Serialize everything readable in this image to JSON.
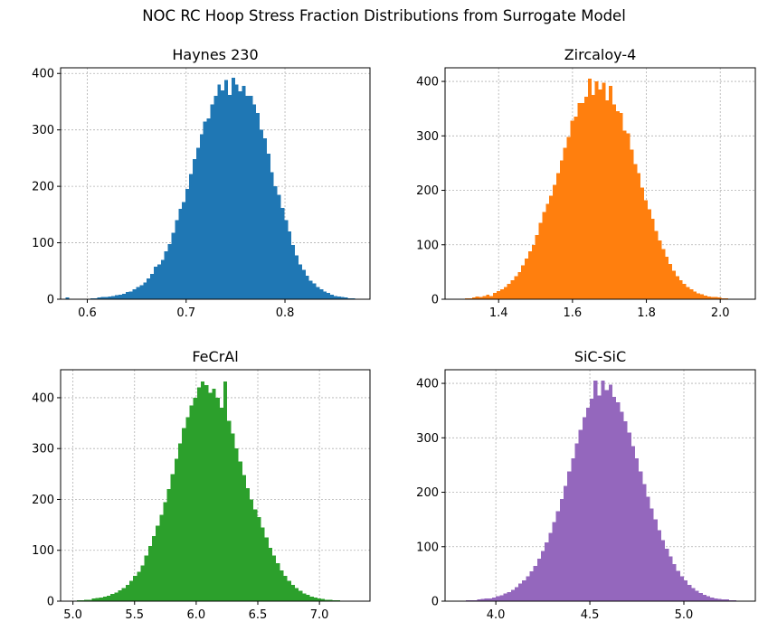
{
  "figure": {
    "title": "NOC RC Hoop Stress Fraction Distributions from Surrogate Model"
  },
  "chart_data": [
    {
      "type": "bar",
      "title": "Haynes 230",
      "color": "#1f77b4",
      "xlim": [
        0.573,
        0.886
      ],
      "ylim": [
        0,
        410
      ],
      "xticks": [
        "0.6",
        "0.7",
        "0.8"
      ],
      "xtick_values": [
        0.6,
        0.7,
        0.8
      ],
      "yticks": [
        "0",
        "100",
        "200",
        "300",
        "400"
      ],
      "ytick_values": [
        0,
        100,
        200,
        300,
        400
      ],
      "grid": true,
      "bins": {
        "start": 0.578,
        "end": 0.878
      },
      "values": [
        3,
        0,
        0,
        0,
        0,
        1,
        1,
        2,
        2,
        3,
        4,
        4,
        5,
        6,
        7,
        8,
        10,
        13,
        14,
        18,
        22,
        25,
        30,
        37,
        45,
        58,
        62,
        70,
        85,
        98,
        118,
        140,
        160,
        172,
        195,
        222,
        248,
        268,
        292,
        315,
        320,
        345,
        360,
        380,
        370,
        388,
        362,
        392,
        380,
        368,
        378,
        360,
        360,
        345,
        330,
        300,
        285,
        258,
        225,
        200,
        185,
        162,
        140,
        120,
        96,
        78,
        62,
        52,
        42,
        33,
        28,
        22,
        18,
        14,
        11,
        8,
        6,
        5,
        4,
        3,
        2,
        2,
        1,
        1
      ]
    },
    {
      "type": "bar",
      "title": "Zircaloy-4",
      "color": "#ff7f0e",
      "xlim": [
        1.255,
        2.095
      ],
      "ylim": [
        0,
        425
      ],
      "xticks": [
        "1.4",
        "1.6",
        "1.8",
        "2.0"
      ],
      "xtick_values": [
        1.4,
        1.6,
        1.8,
        2.0
      ],
      "yticks": [
        "0",
        "100",
        "200",
        "300",
        "400"
      ],
      "ytick_values": [
        0,
        100,
        200,
        300,
        400
      ],
      "grid": true,
      "bins": {
        "start": 1.29,
        "end": 2.06
      },
      "values": [
        1,
        1,
        2,
        2,
        3,
        5,
        4,
        6,
        8,
        6,
        12,
        15,
        18,
        22,
        28,
        35,
        42,
        50,
        62,
        75,
        88,
        100,
        118,
        140,
        160,
        175,
        190,
        210,
        232,
        255,
        278,
        298,
        328,
        335,
        360,
        360,
        372,
        405,
        375,
        400,
        385,
        398,
        365,
        392,
        358,
        345,
        342,
        310,
        305,
        275,
        248,
        232,
        205,
        182,
        165,
        148,
        125,
        108,
        92,
        78,
        65,
        52,
        42,
        35,
        28,
        22,
        18,
        14,
        11,
        9,
        7,
        5,
        4,
        4,
        3,
        2,
        2,
        1,
        1,
        1,
        1
      ]
    },
    {
      "type": "bar",
      "title": "FeCrAl",
      "color": "#2ca02c",
      "xlim": [
        4.9,
        7.41
      ],
      "ylim": [
        0,
        455
      ],
      "xticks": [
        "5.0",
        "5.5",
        "6.0",
        "6.5",
        "7.0"
      ],
      "xtick_values": [
        5.0,
        5.5,
        6.0,
        6.5,
        7.0
      ],
      "yticks": [
        "0",
        "100",
        "200",
        "300",
        "400"
      ],
      "ytick_values": [
        0,
        100,
        200,
        300,
        400
      ],
      "grid": true,
      "bins": {
        "start": 5.0,
        "end": 7.35
      },
      "values": [
        1,
        2,
        2,
        3,
        3,
        5,
        6,
        7,
        9,
        11,
        14,
        17,
        21,
        26,
        32,
        40,
        50,
        58,
        70,
        90,
        108,
        128,
        148,
        170,
        195,
        220,
        250,
        280,
        310,
        340,
        362,
        385,
        400,
        420,
        432,
        425,
        410,
        418,
        400,
        380,
        432,
        355,
        330,
        300,
        275,
        248,
        222,
        200,
        180,
        165,
        145,
        125,
        105,
        90,
        75,
        60,
        50,
        40,
        32,
        26,
        20,
        15,
        12,
        9,
        7,
        5,
        4,
        3,
        3,
        2,
        2,
        1,
        1,
        0,
        0,
        0,
        1
      ]
    },
    {
      "type": "bar",
      "title": "SiC-SiC",
      "color": "#9467bd",
      "xlim": [
        3.73,
        5.38
      ],
      "ylim": [
        0,
        425
      ],
      "xticks": [
        "4.0",
        "4.5",
        "5.0"
      ],
      "xtick_values": [
        4.0,
        4.5,
        5.0
      ],
      "yticks": [
        "0",
        "100",
        "200",
        "300",
        "400"
      ],
      "ytick_values": [
        0,
        100,
        200,
        300,
        400
      ],
      "grid": true,
      "bins": {
        "start": 3.78,
        "end": 5.36
      },
      "values": [
        1,
        1,
        1,
        2,
        2,
        2,
        3,
        4,
        5,
        5,
        7,
        9,
        11,
        14,
        17,
        21,
        26,
        32,
        38,
        46,
        55,
        65,
        78,
        92,
        108,
        125,
        145,
        165,
        188,
        212,
        238,
        262,
        290,
        315,
        338,
        355,
        372,
        405,
        378,
        405,
        388,
        398,
        375,
        365,
        348,
        330,
        310,
        285,
        262,
        238,
        215,
        192,
        170,
        150,
        130,
        112,
        96,
        82,
        68,
        56,
        46,
        38,
        30,
        24,
        19,
        15,
        12,
        9,
        7,
        5,
        4,
        3,
        3,
        2,
        2,
        1,
        1,
        1,
        1
      ]
    }
  ]
}
